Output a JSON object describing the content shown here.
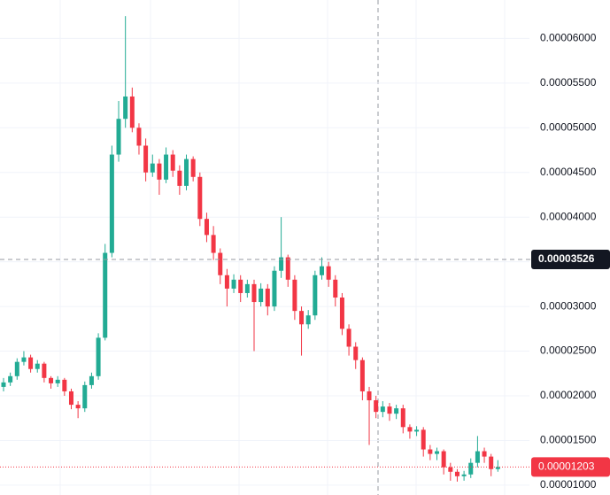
{
  "chart_data": {
    "type": "candlestick",
    "up_color": "#22ab94",
    "down_color": "#f23645",
    "ylim": [
      8.9e-06,
      6.43e-05
    ],
    "yticks": [
      {
        "value": 1e-05,
        "label": "0.00001000"
      },
      {
        "value": 1.5e-05,
        "label": "0.00001500"
      },
      {
        "value": 2e-05,
        "label": "0.00002000"
      },
      {
        "value": 2.5e-05,
        "label": "0.00002500"
      },
      {
        "value": 3e-05,
        "label": "0.00003000"
      },
      {
        "value": 3.5e-05,
        "label": "0.00003500"
      },
      {
        "value": 4e-05,
        "label": "0.00004000"
      },
      {
        "value": 4.5e-05,
        "label": "0.00004500"
      },
      {
        "value": 5e-05,
        "label": "0.00005000"
      },
      {
        "value": 5.5e-05,
        "label": "0.00005500"
      },
      {
        "value": 6e-05,
        "label": "0.00006000"
      }
    ],
    "grid": true,
    "crosshair_price": {
      "value": 3.526e-05,
      "label": "0.00003526"
    },
    "last_price": {
      "value": 1.203e-05,
      "label": "0.00001203",
      "color": "#f23645"
    },
    "open": [
      2.1e-05,
      2.15e-05,
      2.22e-05,
      2.38e-05,
      2.43e-05,
      2.3e-05,
      2.36e-05,
      2.2e-05,
      2.14e-05,
      2.18e-05,
      2.05e-05,
      1.9e-05,
      1.86e-05,
      2.12e-05,
      2.22e-05,
      2.65e-05,
      3.6e-05,
      4.7e-05,
      5.1e-05,
      5.35e-05,
      5e-05,
      4.8e-05,
      4.5e-05,
      4.6e-05,
      4.42e-05,
      4.7e-05,
      4.52e-05,
      4.35e-05,
      4.65e-05,
      4.45e-05,
      3.98e-05,
      3.8e-05,
      3.6e-05,
      3.35e-05,
      3.2e-05,
      3.3e-05,
      3.15e-05,
      3.25e-05,
      3.05e-05,
      3.2e-05,
      3e-05,
      3.4e-05,
      3.55e-05,
      3.3e-05,
      2.95e-05,
      2.8e-05,
      2.9e-05,
      3.35e-05,
      3.45e-05,
      3.3e-05,
      3.1e-05,
      2.75e-05,
      2.55e-05,
      2.4e-05,
      2.05e-05,
      1.95e-05,
      1.82e-05,
      1.88e-05,
      1.8e-05,
      1.86e-05,
      1.65e-05,
      1.6e-05,
      1.62e-05,
      1.4e-05,
      1.35e-05,
      1.38e-05,
      1.2e-05,
      1.15e-05,
      1.1e-05,
      1.12e-05,
      1.25e-05,
      1.38e-05,
      1.32e-05,
      1.18e-05
    ],
    "high": [
      2.2e-05,
      2.26e-05,
      2.42e-05,
      2.5e-05,
      2.46e-05,
      2.4e-05,
      2.38e-05,
      2.22e-05,
      2.22e-05,
      2.2e-05,
      2.08e-05,
      1.94e-05,
      2.16e-05,
      2.26e-05,
      2.7e-05,
      3.7e-05,
      4.8e-05,
      5.3e-05,
      6.25e-05,
      5.45e-05,
      5.05e-05,
      4.88e-05,
      4.7e-05,
      4.65e-05,
      4.78e-05,
      4.75e-05,
      4.58e-05,
      4.7e-05,
      4.68e-05,
      4.5e-05,
      4.05e-05,
      3.9e-05,
      3.65e-05,
      3.42e-05,
      3.36e-05,
      3.35e-05,
      3.3e-05,
      3.3e-05,
      3.26e-05,
      3.25e-05,
      3.45e-05,
      4e-05,
      3.58e-05,
      3.35e-05,
      3e-05,
      2.96e-05,
      3.4e-05,
      3.55e-05,
      3.5e-05,
      3.35e-05,
      3.15e-05,
      2.8e-05,
      2.6e-05,
      2.43e-05,
      2.1e-05,
      2e-05,
      1.94e-05,
      1.92e-05,
      1.9e-05,
      1.9e-05,
      1.68e-05,
      1.66e-05,
      1.65e-05,
      1.45e-05,
      1.42e-05,
      1.4e-05,
      1.25e-05,
      1.18e-05,
      1.16e-05,
      1.3e-05,
      1.55e-05,
      1.42e-05,
      1.35e-05,
      1.28e-05
    ],
    "low": [
      2.05e-05,
      2.11e-05,
      2.18e-05,
      2.34e-05,
      2.26e-05,
      2.26e-05,
      2.15e-05,
      2.08e-05,
      2.1e-05,
      2e-05,
      1.85e-05,
      1.75e-05,
      1.82e-05,
      2.08e-05,
      2.18e-05,
      2.62e-05,
      3.55e-05,
      4.62e-05,
      5e-05,
      4.95e-05,
      4.7e-05,
      4.4e-05,
      4.45e-05,
      4.25e-05,
      4.38e-05,
      4.45e-05,
      4.25e-05,
      4.3e-05,
      4.4e-05,
      3.9e-05,
      3.72e-05,
      3.52e-05,
      3.25e-05,
      3e-05,
      3.15e-05,
      3.05e-05,
      3.1e-05,
      2.5e-05,
      3e-05,
      2.9e-05,
      2.95e-05,
      3.32e-05,
      3.22e-05,
      2.85e-05,
      2.45e-05,
      2.75e-05,
      2.85e-05,
      3.3e-05,
      3.22e-05,
      3e-05,
      2.68e-05,
      2.45e-05,
      2.3e-05,
      1.95e-05,
      1.45e-05,
      1.75e-05,
      1.76e-05,
      1.72e-05,
      1.74e-05,
      1.58e-05,
      1.52e-05,
      1.55e-05,
      1.32e-05,
      1.28e-05,
      1.28e-05,
      1.12e-05,
      1.05e-05,
      1.04e-05,
      1.05e-05,
      1.08e-05,
      1.2e-05,
      1.25e-05,
      1.1e-05,
      1.15e-05
    ],
    "close": [
      2.15e-05,
      2.22e-05,
      2.38e-05,
      2.43e-05,
      2.3e-05,
      2.36e-05,
      2.2e-05,
      2.14e-05,
      2.18e-05,
      2.05e-05,
      1.9e-05,
      1.86e-05,
      2.12e-05,
      2.22e-05,
      2.65e-05,
      3.6e-05,
      4.7e-05,
      5.1e-05,
      5.35e-05,
      5e-05,
      4.8e-05,
      4.5e-05,
      4.6e-05,
      4.42e-05,
      4.7e-05,
      4.52e-05,
      4.35e-05,
      4.65e-05,
      4.45e-05,
      3.98e-05,
      3.8e-05,
      3.6e-05,
      3.35e-05,
      3.2e-05,
      3.3e-05,
      3.15e-05,
      3.25e-05,
      3.05e-05,
      3.2e-05,
      3e-05,
      3.4e-05,
      3.55e-05,
      3.3e-05,
      2.95e-05,
      2.8e-05,
      2.9e-05,
      3.35e-05,
      3.45e-05,
      3.3e-05,
      3.1e-05,
      2.75e-05,
      2.55e-05,
      2.4e-05,
      2.05e-05,
      1.95e-05,
      1.82e-05,
      1.88e-05,
      1.8e-05,
      1.86e-05,
      1.65e-05,
      1.6e-05,
      1.62e-05,
      1.4e-05,
      1.35e-05,
      1.38e-05,
      1.2e-05,
      1.15e-05,
      1.1e-05,
      1.12e-05,
      1.25e-05,
      1.38e-05,
      1.32e-05,
      1.18e-05,
      1.203e-05
    ]
  }
}
